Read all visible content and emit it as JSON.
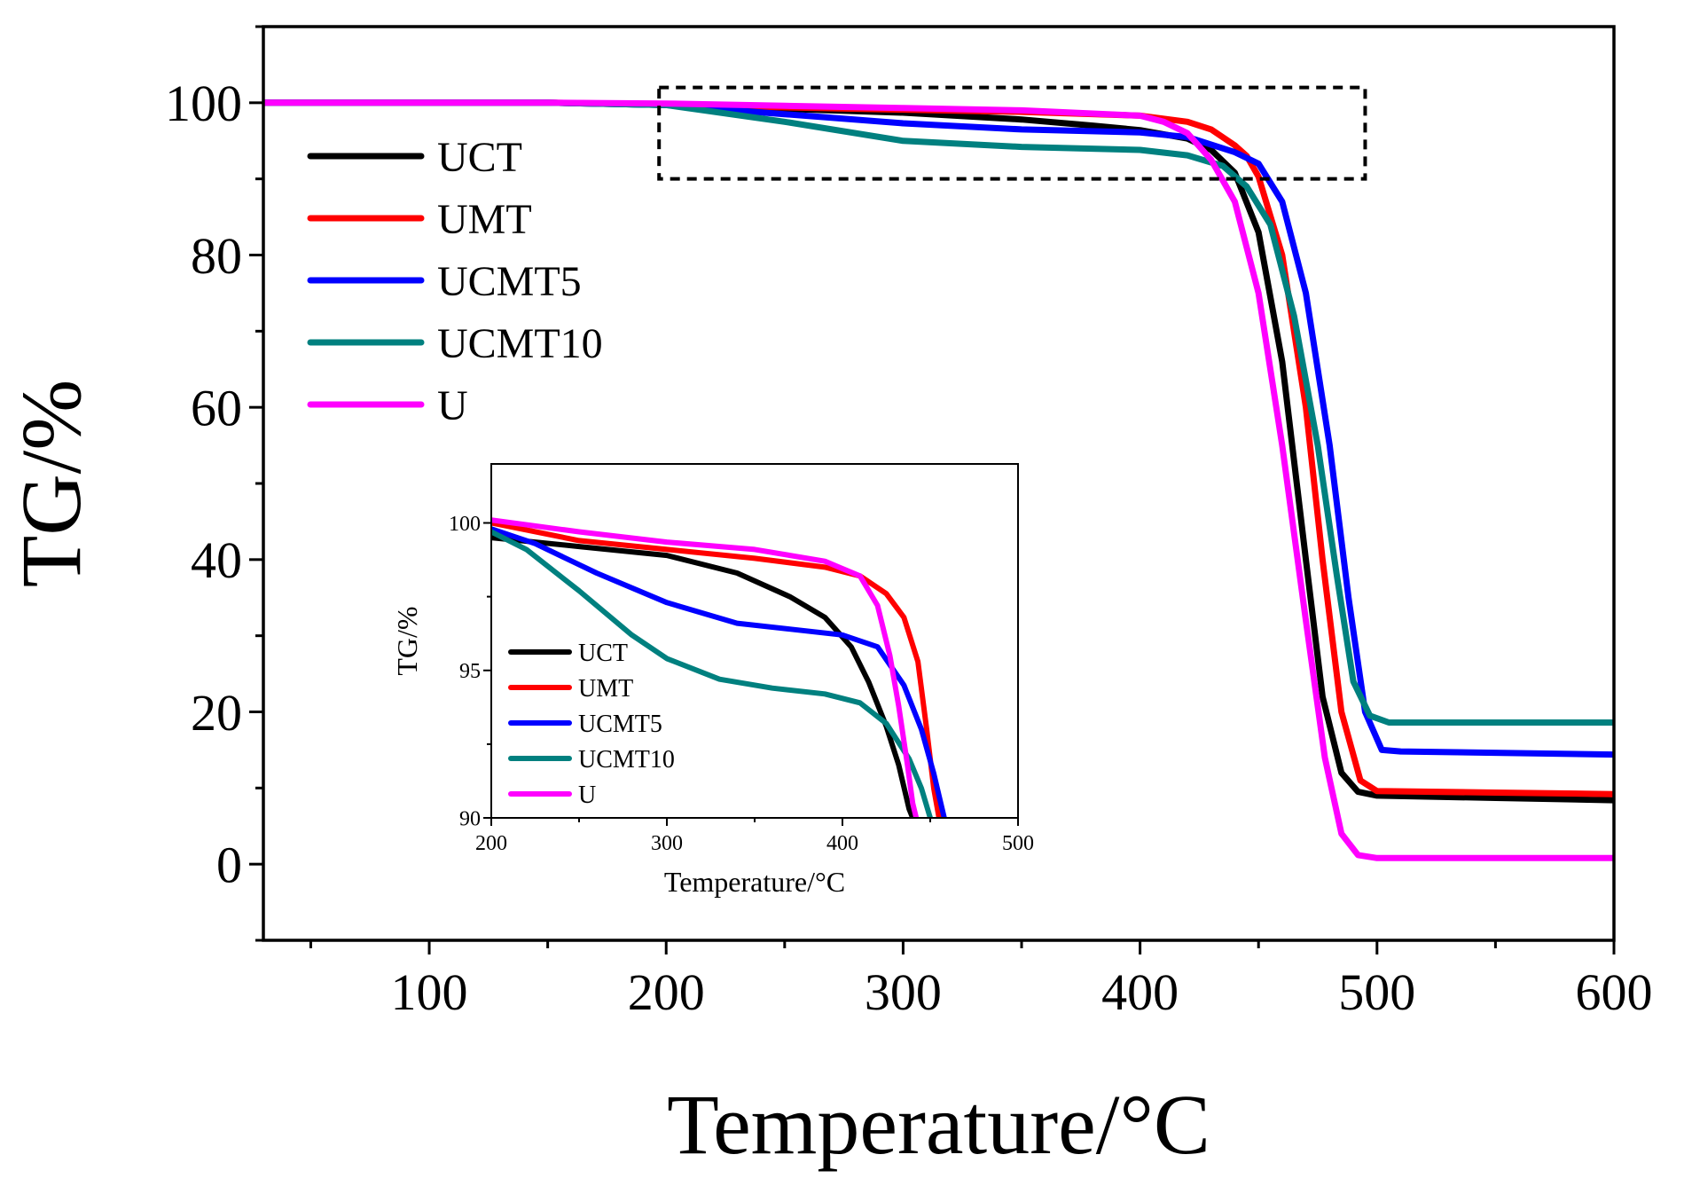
{
  "chart_data": [
    {
      "type": "line",
      "xlabel": "Temperature/°C",
      "ylabel": "TG/%",
      "xlim": [
        30,
        600
      ],
      "ylim": [
        -10,
        110
      ],
      "xticks": [
        100,
        200,
        300,
        400,
        500,
        600
      ],
      "yticks": [
        0,
        20,
        40,
        60,
        80,
        100
      ],
      "xtick_labels": [
        "100",
        "200",
        "300",
        "400",
        "500",
        "600"
      ],
      "ytick_labels": [
        "0",
        "20",
        "40",
        "60",
        "80",
        "100"
      ],
      "legend_position": "top-left",
      "annotation": "dashed box marking zoom region 200–500 °C, 90–102 %",
      "zoom_box": {
        "x": [
          197,
          495
        ],
        "y": [
          90,
          102
        ]
      },
      "series": [
        {
          "name": "UCT",
          "color": "#000000",
          "points": [
            [
              30,
              100
            ],
            [
              100,
              100
            ],
            [
              150,
              100
            ],
            [
              200,
              99.7
            ],
            [
              250,
              99.2
            ],
            [
              300,
              98.7
            ],
            [
              350,
              97.8
            ],
            [
              380,
              97
            ],
            [
              400,
              96.4
            ],
            [
              420,
              95.3
            ],
            [
              430,
              93.8
            ],
            [
              440,
              90.8
            ],
            [
              450,
              83
            ],
            [
              460,
              66
            ],
            [
              470,
              40
            ],
            [
              477,
              22
            ],
            [
              485,
              12
            ],
            [
              492,
              9.5
            ],
            [
              500,
              9
            ],
            [
              550,
              8.7
            ],
            [
              600,
              8.4
            ]
          ]
        },
        {
          "name": "UMT",
          "color": "#ff0000",
          "points": [
            [
              30,
              100
            ],
            [
              100,
              100
            ],
            [
              150,
              100
            ],
            [
              200,
              99.8
            ],
            [
              250,
              99.4
            ],
            [
              300,
              99.1
            ],
            [
              350,
              98.8
            ],
            [
              400,
              98.3
            ],
            [
              420,
              97.5
            ],
            [
              430,
              96.5
            ],
            [
              440,
              94.4
            ],
            [
              445,
              93
            ],
            [
              450,
              90.3
            ],
            [
              460,
              80
            ],
            [
              470,
              60
            ],
            [
              477,
              40
            ],
            [
              485,
              20
            ],
            [
              493,
              11
            ],
            [
              500,
              9.6
            ],
            [
              550,
              9.4
            ],
            [
              600,
              9.2
            ]
          ]
        },
        {
          "name": "UCMT5",
          "color": "#0000ff",
          "points": [
            [
              30,
              100
            ],
            [
              100,
              100
            ],
            [
              150,
              100
            ],
            [
              200,
              99.7
            ],
            [
              250,
              98.5
            ],
            [
              300,
              97.3
            ],
            [
              350,
              96.5
            ],
            [
              400,
              96.1
            ],
            [
              420,
              95.5
            ],
            [
              440,
              93.5
            ],
            [
              450,
              92
            ],
            [
              460,
              87
            ],
            [
              470,
              75
            ],
            [
              480,
              55
            ],
            [
              488,
              35
            ],
            [
              495,
              20
            ],
            [
              502,
              15
            ],
            [
              510,
              14.8
            ],
            [
              600,
              14.4
            ]
          ]
        },
        {
          "name": "UCMT10",
          "color": "#00807f",
          "points": [
            [
              30,
              100
            ],
            [
              100,
              100
            ],
            [
              150,
              100
            ],
            [
              200,
              99.7
            ],
            [
              250,
              97.5
            ],
            [
              300,
              95
            ],
            [
              350,
              94.2
            ],
            [
              400,
              93.8
            ],
            [
              420,
              93.1
            ],
            [
              435,
              91.7
            ],
            [
              445,
              89
            ],
            [
              455,
              84
            ],
            [
              465,
              72
            ],
            [
              475,
              55
            ],
            [
              483,
              38
            ],
            [
              490,
              24
            ],
            [
              497,
              19.5
            ],
            [
              505,
              18.6
            ],
            [
              600,
              18.6
            ]
          ]
        },
        {
          "name": "U",
          "color": "#ff00ff",
          "points": [
            [
              30,
              100
            ],
            [
              100,
              100
            ],
            [
              150,
              100
            ],
            [
              200,
              99.9
            ],
            [
              250,
              99.6
            ],
            [
              300,
              99.3
            ],
            [
              350,
              99
            ],
            [
              400,
              98.3
            ],
            [
              410,
              97.5
            ],
            [
              420,
              96
            ],
            [
              430,
              92.5
            ],
            [
              440,
              87
            ],
            [
              450,
              75
            ],
            [
              460,
              55
            ],
            [
              470,
              32
            ],
            [
              478,
              14
            ],
            [
              485,
              4
            ],
            [
              492,
              1.2
            ],
            [
              500,
              0.8
            ],
            [
              550,
              0.8
            ],
            [
              600,
              0.8
            ]
          ]
        }
      ]
    },
    {
      "type": "line",
      "role": "inset",
      "xlabel": "Temperature/°C",
      "ylabel": "TG/%",
      "xlim": [
        200,
        500
      ],
      "ylim": [
        90,
        102
      ],
      "xticks": [
        200,
        300,
        400,
        500
      ],
      "yticks": [
        90,
        95,
        100
      ],
      "xtick_labels": [
        "200",
        "300",
        "400",
        "500"
      ],
      "ytick_labels": [
        "90",
        "95",
        "100"
      ],
      "legend_position": "bottom-left",
      "series": [
        {
          "name": "UCT",
          "color": "#000000",
          "points": [
            [
              200,
              99.5
            ],
            [
              250,
              99.2
            ],
            [
              300,
              98.9
            ],
            [
              340,
              98.3
            ],
            [
              370,
              97.5
            ],
            [
              390,
              96.8
            ],
            [
              405,
              95.8
            ],
            [
              415,
              94.6
            ],
            [
              425,
              93.1
            ],
            [
              432,
              91.8
            ],
            [
              438,
              90.3
            ],
            [
              440,
              90
            ]
          ]
        },
        {
          "name": "UMT",
          "color": "#ff0000",
          "points": [
            [
              200,
              100
            ],
            [
              250,
              99.4
            ],
            [
              300,
              99.1
            ],
            [
              350,
              98.8
            ],
            [
              390,
              98.5
            ],
            [
              410,
              98.2
            ],
            [
              425,
              97.6
            ],
            [
              435,
              96.8
            ],
            [
              443,
              95.3
            ],
            [
              448,
              93
            ],
            [
              452,
              91
            ],
            [
              455,
              90
            ]
          ]
        },
        {
          "name": "UCMT5",
          "color": "#0000ff",
          "points": [
            [
              200,
              99.8
            ],
            [
              225,
              99.3
            ],
            [
              260,
              98.3
            ],
            [
              300,
              97.3
            ],
            [
              340,
              96.6
            ],
            [
              370,
              96.4
            ],
            [
              400,
              96.2
            ],
            [
              420,
              95.8
            ],
            [
              435,
              94.5
            ],
            [
              445,
              93
            ],
            [
              452,
              91.5
            ],
            [
              458,
              90
            ]
          ]
        },
        {
          "name": "UCMT10",
          "color": "#00807f",
          "points": [
            [
              200,
              99.7
            ],
            [
              220,
              99.1
            ],
            [
              250,
              97.7
            ],
            [
              280,
              96.2
            ],
            [
              300,
              95.4
            ],
            [
              330,
              94.7
            ],
            [
              360,
              94.4
            ],
            [
              390,
              94.2
            ],
            [
              410,
              93.9
            ],
            [
              425,
              93.2
            ],
            [
              438,
              92
            ],
            [
              445,
              91
            ],
            [
              450,
              90
            ]
          ]
        },
        {
          "name": "U",
          "color": "#ff00ff",
          "points": [
            [
              200,
              100.1
            ],
            [
              250,
              99.7
            ],
            [
              300,
              99.35
            ],
            [
              350,
              99.1
            ],
            [
              390,
              98.7
            ],
            [
              410,
              98.2
            ],
            [
              420,
              97.2
            ],
            [
              427,
              95.5
            ],
            [
              432,
              93.8
            ],
            [
              437,
              91.8
            ],
            [
              440,
              90.5
            ],
            [
              442,
              90
            ]
          ]
        }
      ]
    }
  ]
}
